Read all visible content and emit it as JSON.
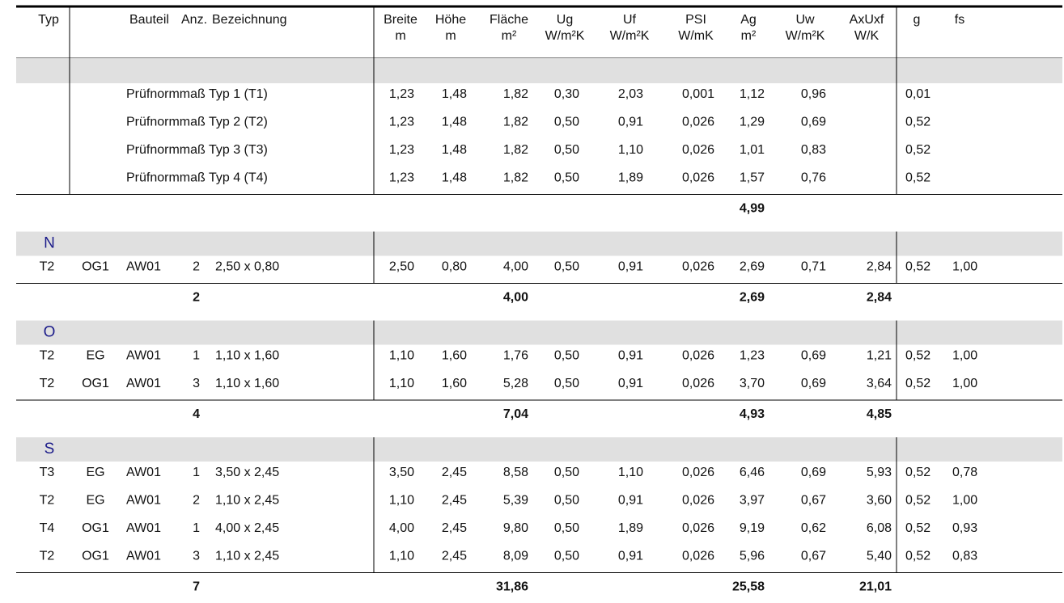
{
  "header": {
    "typ": [
      "Typ"
    ],
    "bauteil": [
      "Bauteil"
    ],
    "anz": [
      "Anz."
    ],
    "bezeichnung": [
      "Bezeichnung"
    ],
    "breite": [
      "Breite",
      "m"
    ],
    "hoehe": [
      "Höhe",
      "m"
    ],
    "flaeche": [
      "Fläche",
      "m²"
    ],
    "ug": [
      "Ug",
      "W/m²K"
    ],
    "uf": [
      "Uf",
      "W/m²K"
    ],
    "psi": [
      "PSI",
      "W/mK"
    ],
    "ag": [
      "Ag",
      "m²"
    ],
    "uw": [
      "Uw",
      "W/m²K"
    ],
    "axuxf": [
      "AxUxf",
      "W/K"
    ],
    "g": [
      "g"
    ],
    "fs": [
      "fs"
    ]
  },
  "sections": [
    {
      "rows": [
        {
          "bezeichnung": "Prüfnormmaß Typ 1 (T1)",
          "breite": "1,23",
          "hoehe": "1,48",
          "flaeche": "1,82",
          "ug": "0,30",
          "uf": "2,03",
          "psi": "0,001",
          "ag": "1,12",
          "uw": "0,96",
          "g": "0,01"
        },
        {
          "bezeichnung": "Prüfnormmaß Typ 2 (T2)",
          "breite": "1,23",
          "hoehe": "1,48",
          "flaeche": "1,82",
          "ug": "0,50",
          "uf": "0,91",
          "psi": "0,026",
          "ag": "1,29",
          "uw": "0,69",
          "g": "0,52"
        },
        {
          "bezeichnung": "Prüfnormmaß Typ 3 (T3)",
          "breite": "1,23",
          "hoehe": "1,48",
          "flaeche": "1,82",
          "ug": "0,50",
          "uf": "1,10",
          "psi": "0,026",
          "ag": "1,01",
          "uw": "0,83",
          "g": "0,52"
        },
        {
          "bezeichnung": "Prüfnormmaß Typ 4 (T4)",
          "breite": "1,23",
          "hoehe": "1,48",
          "flaeche": "1,82",
          "ug": "0,50",
          "uf": "1,89",
          "psi": "0,026",
          "ag": "1,57",
          "uw": "0,76",
          "g": "0,52"
        }
      ],
      "total": {
        "ag": "4,99"
      }
    },
    {
      "label": "N",
      "rows": [
        {
          "typ": "T2",
          "geschoss": "OG1",
          "bauteil": "AW01",
          "anz": "2",
          "bezeichnung": "2,50 x 0,80",
          "breite": "2,50",
          "hoehe": "0,80",
          "flaeche": "4,00",
          "ug": "0,50",
          "uf": "0,91",
          "psi": "0,026",
          "ag": "2,69",
          "uw": "0,71",
          "axuxf": "2,84",
          "g": "0,52",
          "fs": "1,00"
        }
      ],
      "total": {
        "anz": "2",
        "flaeche": "4,00",
        "ag": "2,69",
        "axuxf": "2,84"
      }
    },
    {
      "label": "O",
      "rows": [
        {
          "typ": "T2",
          "geschoss": "EG",
          "bauteil": "AW01",
          "anz": "1",
          "bezeichnung": "1,10 x 1,60",
          "breite": "1,10",
          "hoehe": "1,60",
          "flaeche": "1,76",
          "ug": "0,50",
          "uf": "0,91",
          "psi": "0,026",
          "ag": "1,23",
          "uw": "0,69",
          "axuxf": "1,21",
          "g": "0,52",
          "fs": "1,00"
        },
        {
          "typ": "T2",
          "geschoss": "OG1",
          "bauteil": "AW01",
          "anz": "3",
          "bezeichnung": "1,10 x 1,60",
          "breite": "1,10",
          "hoehe": "1,60",
          "flaeche": "5,28",
          "ug": "0,50",
          "uf": "0,91",
          "psi": "0,026",
          "ag": "3,70",
          "uw": "0,69",
          "axuxf": "3,64",
          "g": "0,52",
          "fs": "1,00"
        }
      ],
      "total": {
        "anz": "4",
        "flaeche": "7,04",
        "ag": "4,93",
        "axuxf": "4,85"
      }
    },
    {
      "label": "S",
      "rows": [
        {
          "typ": "T3",
          "geschoss": "EG",
          "bauteil": "AW01",
          "anz": "1",
          "bezeichnung": "3,50 x 2,45",
          "breite": "3,50",
          "hoehe": "2,45",
          "flaeche": "8,58",
          "ug": "0,50",
          "uf": "1,10",
          "psi": "0,026",
          "ag": "6,46",
          "uw": "0,69",
          "axuxf": "5,93",
          "g": "0,52",
          "fs": "0,78"
        },
        {
          "typ": "T2",
          "geschoss": "EG",
          "bauteil": "AW01",
          "anz": "2",
          "bezeichnung": "1,10 x 2,45",
          "breite": "1,10",
          "hoehe": "2,45",
          "flaeche": "5,39",
          "ug": "0,50",
          "uf": "0,91",
          "psi": "0,026",
          "ag": "3,97",
          "uw": "0,67",
          "axuxf": "3,60",
          "g": "0,52",
          "fs": "1,00"
        },
        {
          "typ": "T4",
          "geschoss": "OG1",
          "bauteil": "AW01",
          "anz": "1",
          "bezeichnung": "4,00 x 2,45",
          "breite": "4,00",
          "hoehe": "2,45",
          "flaeche": "9,80",
          "ug": "0,50",
          "uf": "1,89",
          "psi": "0,026",
          "ag": "9,19",
          "uw": "0,62",
          "axuxf": "6,08",
          "g": "0,52",
          "fs": "0,93"
        },
        {
          "typ": "T2",
          "geschoss": "OG1",
          "bauteil": "AW01",
          "anz": "3",
          "bezeichnung": "1,10 x 2,45",
          "breite": "1,10",
          "hoehe": "2,45",
          "flaeche": "8,09",
          "ug": "0,50",
          "uf": "0,91",
          "psi": "0,026",
          "ag": "5,96",
          "uw": "0,67",
          "axuxf": "5,40",
          "g": "0,52",
          "fs": "0,83"
        }
      ],
      "total": {
        "anz": "7",
        "flaeche": "31,86",
        "ag": "25,58",
        "axuxf": "21,01"
      }
    }
  ]
}
